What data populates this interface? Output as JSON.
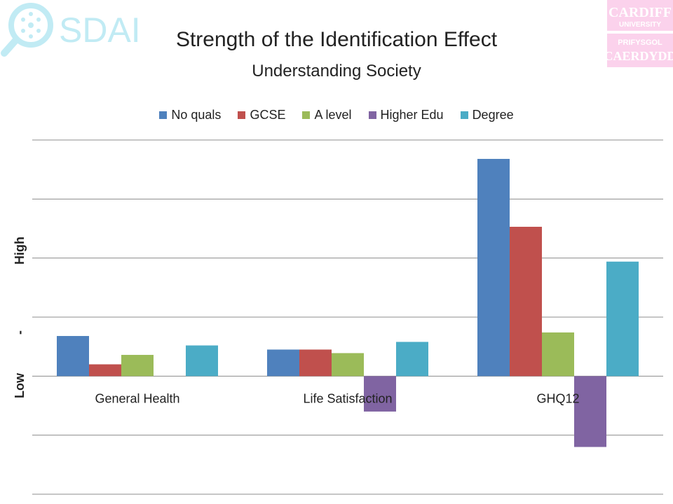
{
  "logos": {
    "sdai_text": "SDAI",
    "cardiff_line1": "CARDIFF",
    "cardiff_line2": "UNIVERSITY",
    "cardiff_line3": "PRIFYSGOL",
    "cardiff_line4": "CAERDYDD"
  },
  "colors": {
    "sdai_accent": "#8fdcec",
    "cardiff_bg": "#fbd2ec",
    "gridline": "#8c8c8c"
  },
  "chart_data": {
    "type": "bar",
    "title": "Strength of the Identification Effect",
    "subtitle": "Understanding Society",
    "ylabel_parts": [
      "Low",
      "-",
      "High"
    ],
    "categories": [
      "General Health",
      "Life Satisfaction",
      "GHQ12"
    ],
    "series": [
      {
        "name": "No quals",
        "color": "#4f81bd",
        "values": [
          0.68,
          0.45,
          3.68
        ]
      },
      {
        "name": "GCSE",
        "color": "#c0504d",
        "values": [
          0.2,
          0.45,
          2.53
        ]
      },
      {
        "name": "A level",
        "color": "#9bbb59",
        "values": [
          0.36,
          0.39,
          0.74
        ]
      },
      {
        "name": "Higher Edu",
        "color": "#8064a2",
        "values": [
          0.0,
          -0.6,
          -1.2
        ]
      },
      {
        "name": "Degree",
        "color": "#4bacc6",
        "values": [
          0.52,
          0.58,
          1.94
        ]
      }
    ],
    "ylim": [
      -2,
      4
    ],
    "grid": true,
    "legend_position": "top"
  }
}
